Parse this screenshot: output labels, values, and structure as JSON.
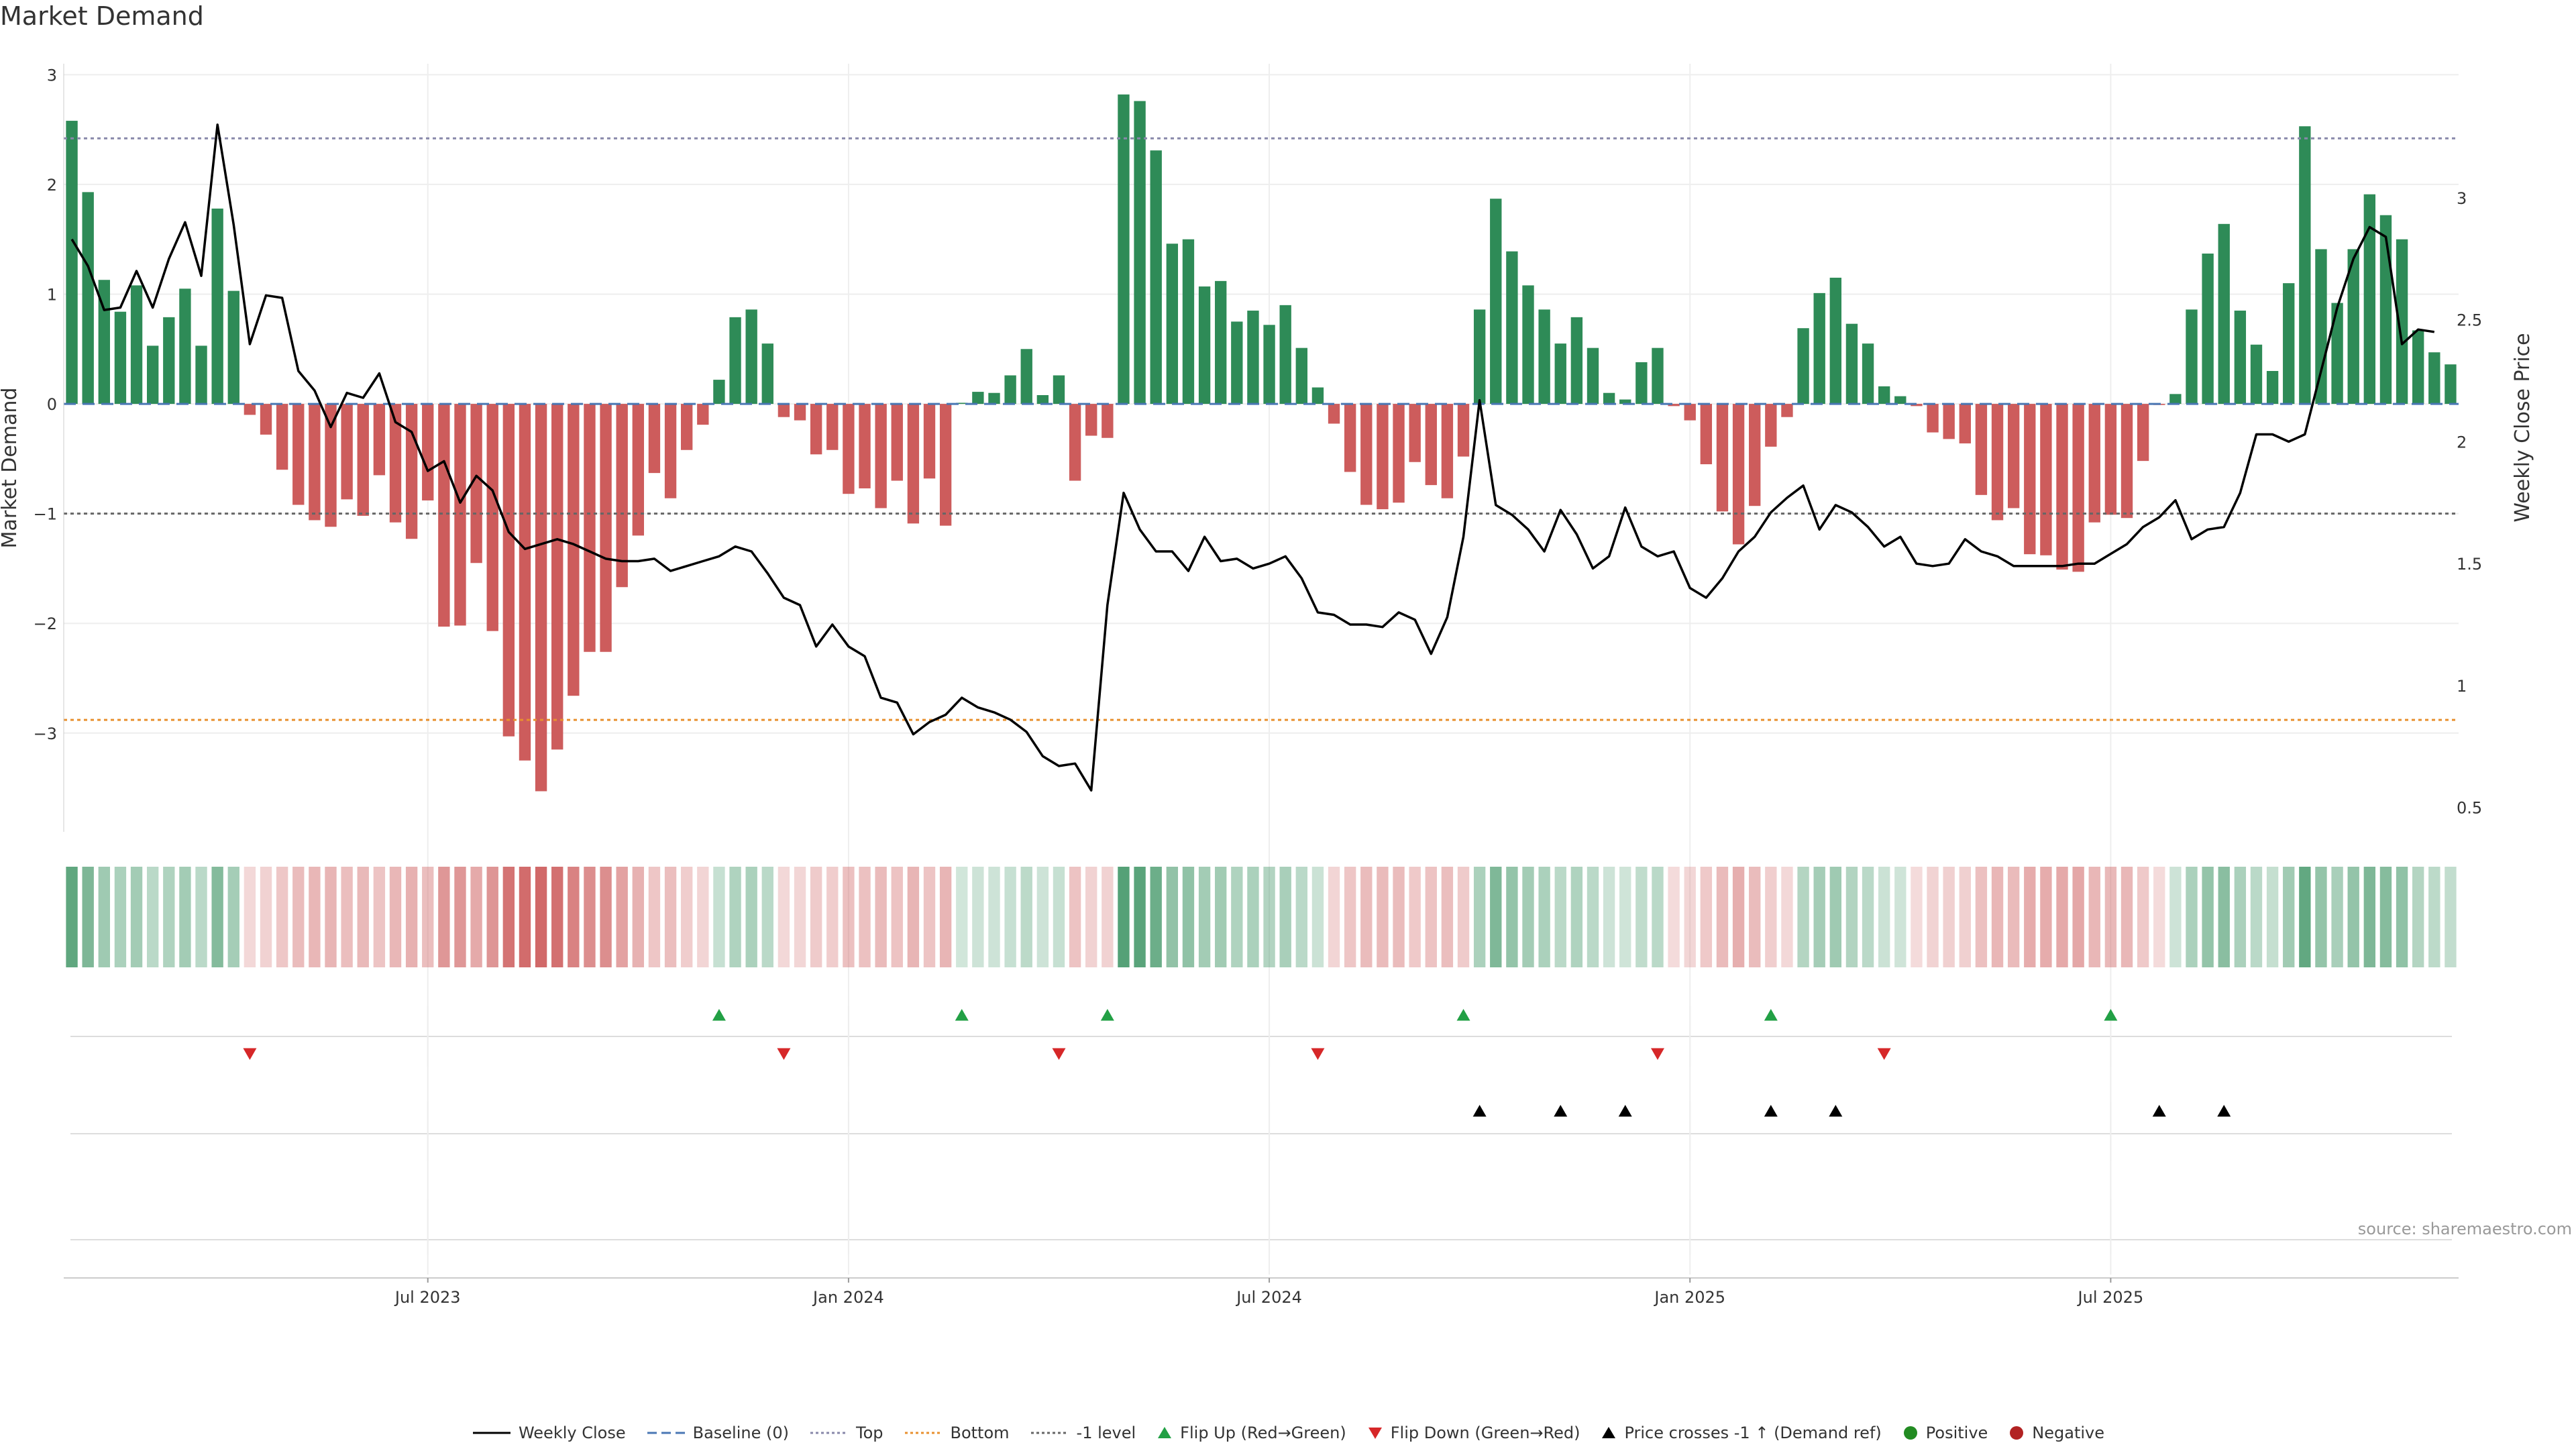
{
  "chart_data": {
    "type": "bar",
    "title": "Market Demand",
    "ylabel": "Market Demand",
    "y2label": "Weekly Close Price",
    "ylim": [
      -3.9,
      3.1
    ],
    "y2lim": [
      0.4,
      3.55
    ],
    "yticks": [
      3,
      2,
      1,
      0,
      -1,
      -2,
      -3
    ],
    "y2ticks": [
      3,
      2.5,
      2,
      1.5,
      1,
      0.5
    ],
    "levels": {
      "top": 2.42,
      "bottom": -2.88,
      "minus_one": -1
    },
    "xtick_labels": [
      {
        "label": "Jul 2023",
        "week": 22
      },
      {
        "label": "Jan 2024",
        "week": 48
      },
      {
        "label": "Jul 2024",
        "week": 74
      },
      {
        "label": "Jan 2025",
        "week": 100
      },
      {
        "label": "Jul 2025",
        "week": 126
      }
    ],
    "demand": [
      2.58,
      1.93,
      1.13,
      0.84,
      1.08,
      0.53,
      0.79,
      1.05,
      0.53,
      1.78,
      1.03,
      -0.1,
      -0.28,
      -0.6,
      -0.92,
      -1.06,
      -1.12,
      -0.87,
      -1.02,
      -0.65,
      -1.08,
      -1.23,
      -0.88,
      -2.03,
      -2.02,
      -1.45,
      -2.07,
      -3.03,
      -3.25,
      -3.53,
      -3.15,
      -2.66,
      -2.26,
      -2.26,
      -1.67,
      -1.2,
      -0.63,
      -0.86,
      -0.42,
      -0.19,
      0.22,
      0.79,
      0.86,
      0.55,
      -0.12,
      -0.15,
      -0.46,
      -0.42,
      -0.82,
      -0.77,
      -0.95,
      -0.7,
      -1.09,
      -0.68,
      -1.11,
      0.01,
      0.11,
      0.1,
      0.26,
      0.5,
      0.08,
      0.26,
      -0.7,
      -0.29,
      -0.31,
      2.82,
      2.76,
      2.31,
      1.46,
      1.5,
      1.07,
      1.12,
      0.75,
      0.85,
      0.72,
      0.9,
      0.51,
      0.15,
      -0.18,
      -0.62,
      -0.92,
      -0.96,
      -0.9,
      -0.53,
      -0.74,
      -0.86,
      -0.48,
      0.86,
      1.87,
      1.39,
      1.08,
      0.86,
      0.55,
      0.79,
      0.51,
      0.1,
      0.04,
      0.38,
      0.51,
      -0.02,
      -0.15,
      -0.55,
      -0.98,
      -1.28,
      -0.93,
      -0.39,
      -0.12,
      0.69,
      1.01,
      1.15,
      0.73,
      0.55,
      0.16,
      0.07,
      -0.02,
      -0.26,
      -0.32,
      -0.36,
      -0.83,
      -1.06,
      -0.95,
      -1.37,
      -1.38,
      -1.51,
      -1.53,
      -1.08,
      -1.01,
      -1.04,
      -0.52,
      -0.01,
      0.09,
      0.86,
      1.37,
      1.64,
      0.85,
      0.54,
      0.3,
      1.1,
      2.53,
      1.41,
      0.92,
      1.41,
      1.91,
      1.72,
      1.5,
      0.67,
      0.47,
      0.36
    ],
    "close": [
      2.83,
      2.72,
      2.54,
      2.55,
      2.7,
      2.55,
      2.75,
      2.9,
      2.68,
      3.3,
      2.89,
      2.4,
      2.6,
      2.59,
      2.29,
      2.21,
      2.06,
      2.2,
      2.18,
      2.28,
      2.08,
      2.04,
      1.88,
      1.92,
      1.75,
      1.86,
      1.8,
      1.63,
      1.56,
      1.58,
      1.6,
      1.58,
      1.55,
      1.52,
      1.51,
      1.51,
      1.52,
      1.47,
      1.49,
      1.51,
      1.53,
      1.57,
      1.55,
      1.46,
      1.36,
      1.33,
      1.16,
      1.25,
      1.16,
      1.12,
      0.95,
      0.93,
      0.8,
      0.85,
      0.88,
      0.95,
      0.91,
      0.89,
      0.86,
      0.81,
      0.71,
      0.67,
      0.68,
      0.57,
      1.33,
      1.79,
      1.64,
      1.55,
      1.55,
      1.47,
      1.61,
      1.51,
      1.52,
      1.48,
      1.5,
      1.53,
      1.44,
      1.3,
      1.29,
      1.25,
      1.25,
      1.24,
      1.3,
      1.27,
      1.13,
      1.28,
      1.61,
      2.17,
      1.74,
      1.7,
      1.64,
      1.55,
      1.72,
      1.62,
      1.48,
      1.53,
      1.73,
      1.57,
      1.53,
      1.55,
      1.4,
      1.36,
      1.44,
      1.55,
      1.61,
      1.71,
      1.77,
      1.82,
      1.64,
      1.74,
      1.71,
      1.65,
      1.57,
      1.61,
      1.5,
      1.49,
      1.5,
      1.6,
      1.55,
      1.53,
      1.49,
      1.49,
      1.49,
      1.49,
      1.5,
      1.5,
      1.54,
      1.58,
      1.65,
      1.69,
      1.76,
      1.6,
      1.64,
      1.65,
      1.79,
      2.03,
      2.03,
      2.0,
      2.03,
      2.29,
      2.55,
      2.75,
      2.88,
      2.84,
      2.4,
      2.46,
      2.45
    ],
    "flip_up_weeks": [
      40,
      55,
      64,
      86,
      105,
      126
    ],
    "flip_down_weeks": [
      11,
      44,
      61,
      77,
      98,
      112
    ],
    "price_cross_weeks": [
      87,
      92,
      96,
      105,
      109,
      129,
      133
    ],
    "colors": {
      "positive": "#2e8b57",
      "negative": "#cd5c5c",
      "close": "#000000",
      "baseline": "#4a77b4",
      "top": "#8888aa",
      "bottom": "#e8902f",
      "minus_one": "#666666",
      "flip_up": "#22a045",
      "flip_down": "#d62728",
      "cross": "#000000",
      "legend_positive": "#228b22",
      "legend_negative": "#b22222"
    },
    "legend": [
      {
        "label": "Weekly Close",
        "kind": "line-solid",
        "color": "#000000"
      },
      {
        "label": "Baseline (0)",
        "kind": "line-dashed",
        "color": "#4a77b4"
      },
      {
        "label": "Top",
        "kind": "line-dotted",
        "color": "#8888aa"
      },
      {
        "label": "Bottom",
        "kind": "line-dotted",
        "color": "#e8902f"
      },
      {
        "label": "-1 level",
        "kind": "line-dotted",
        "color": "#666666"
      },
      {
        "label": "Flip Up (Red→Green)",
        "kind": "tri-up",
        "color": "#22a045"
      },
      {
        "label": "Flip Down (Green→Red)",
        "kind": "tri-down",
        "color": "#d62728"
      },
      {
        "label": "Price crosses -1 ↑ (Demand ref)",
        "kind": "tri-up",
        "color": "#000000"
      },
      {
        "label": "Positive",
        "kind": "dot",
        "color": "#228b22"
      },
      {
        "label": "Negative",
        "kind": "dot",
        "color": "#b22222"
      }
    ],
    "source": "source: sharemaestro.com"
  }
}
